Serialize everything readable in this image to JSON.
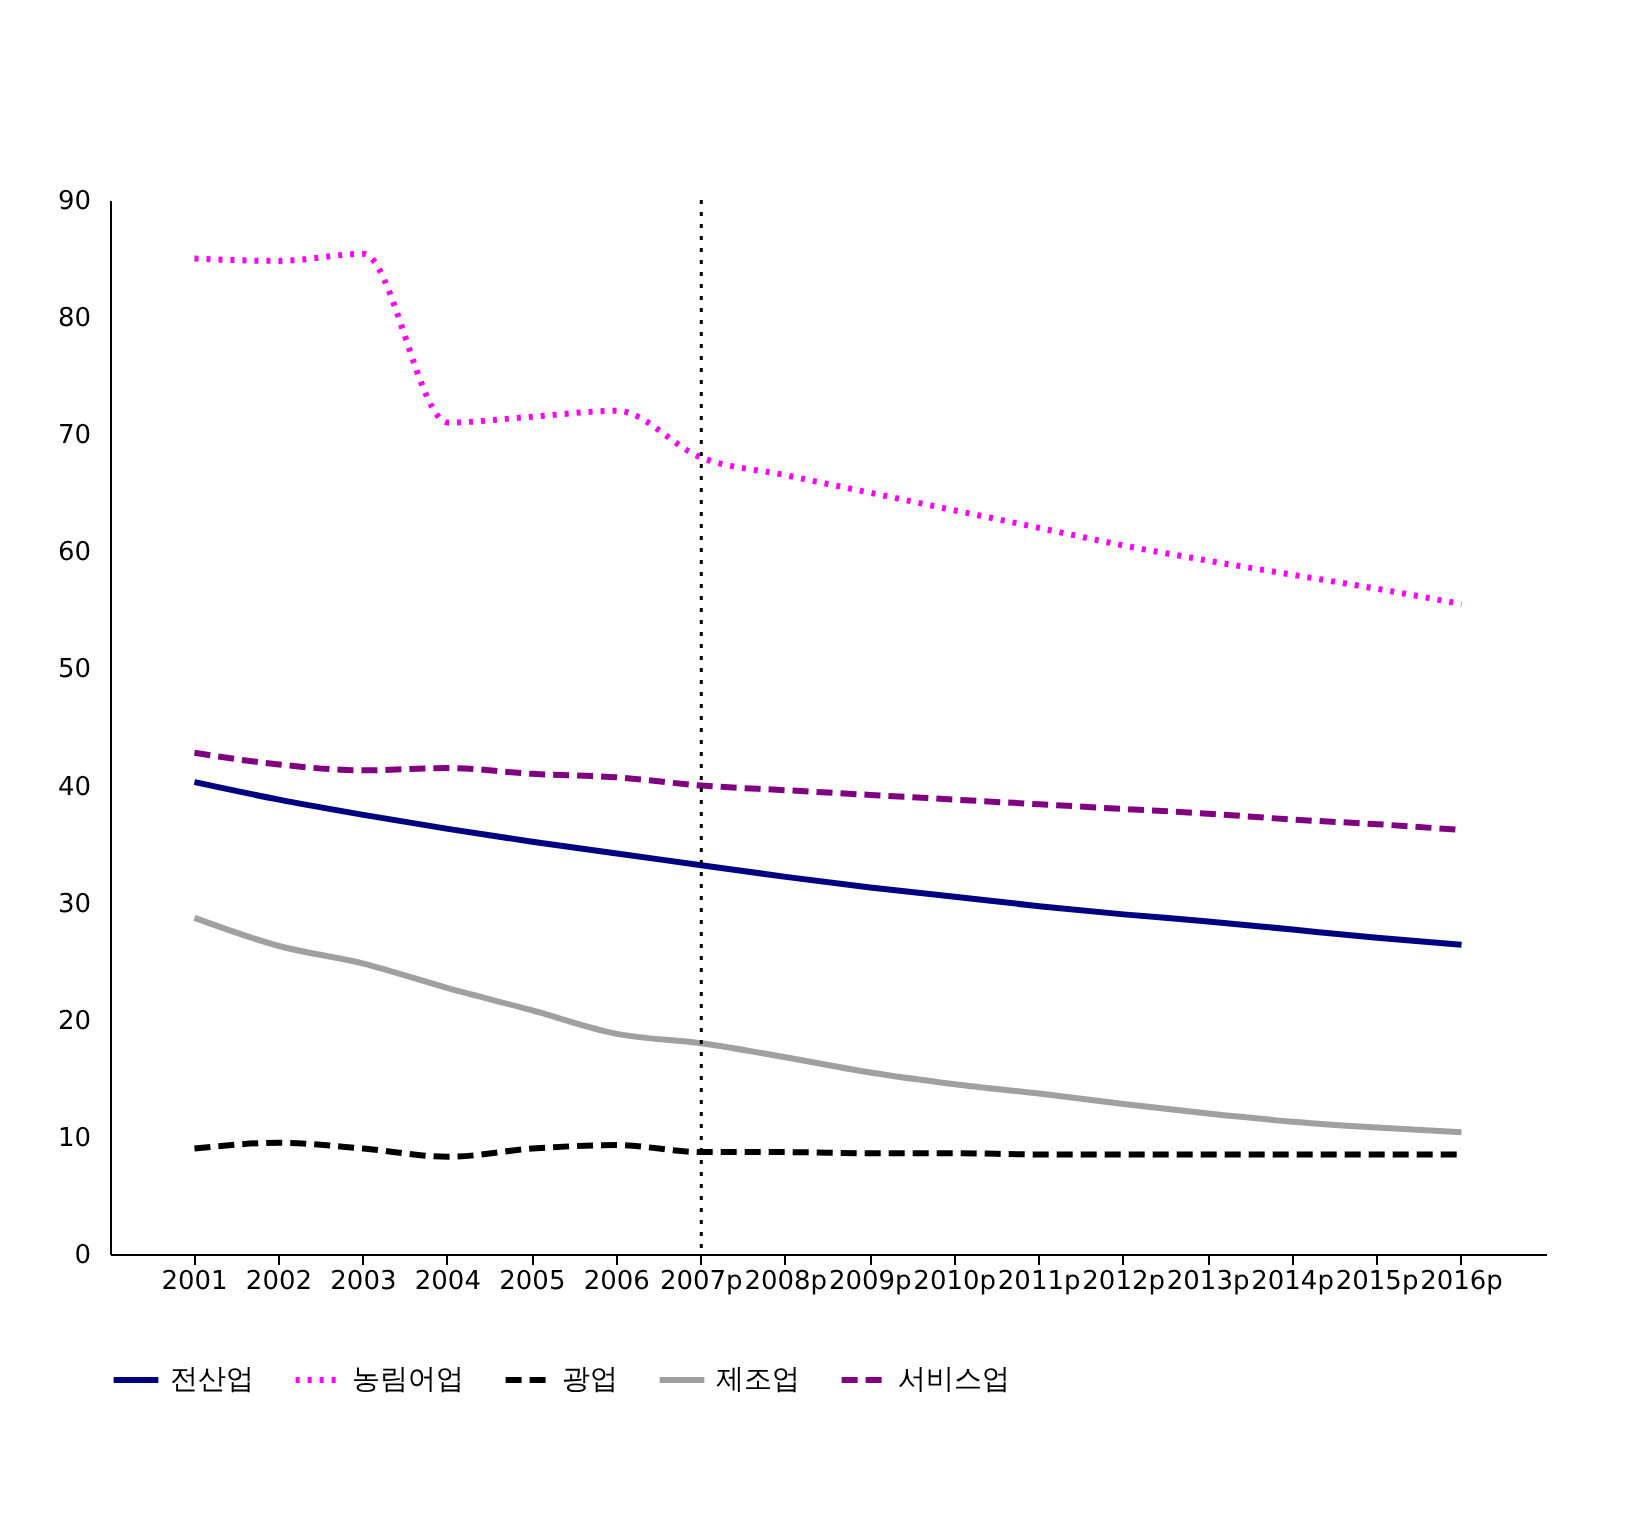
{
  "chart_data": {
    "type": "line",
    "categories": [
      "2001",
      "2002",
      "2003",
      "2004",
      "2005",
      "2006",
      "2007p",
      "2008p",
      "2009p",
      "2010p",
      "2011p",
      "2012p",
      "2013p",
      "2014p",
      "2015p",
      "2016p"
    ],
    "series": [
      {
        "name": "전산업",
        "color": "#000080",
        "line_style": "solid",
        "values": [
          40.3,
          38.8,
          37.5,
          36.3,
          35.2,
          34.2,
          33.2,
          32.2,
          31.3,
          30.5,
          29.7,
          29.0,
          28.4,
          27.7,
          27.0,
          26.4
        ]
      },
      {
        "name": "농림어업",
        "color": "#ff00ff",
        "line_style": "dotted",
        "values": [
          85.0,
          84.8,
          85.4,
          71.0,
          71.5,
          72.0,
          68.0,
          66.5,
          65.0,
          63.5,
          62.0,
          60.5,
          59.2,
          58.0,
          56.8,
          55.5
        ]
      },
      {
        "name": "광업",
        "color": "#000000",
        "line_style": "dashed",
        "values": [
          9.0,
          9.5,
          9.0,
          8.3,
          9.0,
          9.3,
          8.7,
          8.7,
          8.6,
          8.6,
          8.5,
          8.5,
          8.5,
          8.5,
          8.5,
          8.5
        ]
      },
      {
        "name": "제조업",
        "color": "#a0a0a0",
        "line_style": "solid",
        "values": [
          28.7,
          26.3,
          24.8,
          22.7,
          20.8,
          18.8,
          18.0,
          16.8,
          15.5,
          14.5,
          13.7,
          12.8,
          12.0,
          11.3,
          10.8,
          10.4
        ]
      },
      {
        "name": "서비스업",
        "color": "#800080",
        "line_style": "dashed",
        "values": [
          42.8,
          41.8,
          41.3,
          41.5,
          41.0,
          40.7,
          40.0,
          39.6,
          39.2,
          38.8,
          38.4,
          38.0,
          37.6,
          37.1,
          36.7,
          36.2
        ]
      }
    ],
    "ylim": [
      0,
      90
    ],
    "yticks": [
      0,
      10,
      20,
      30,
      40,
      50,
      60,
      70,
      80,
      90
    ],
    "grid": false,
    "legend": "bottom",
    "marker": "none",
    "ref_lines": [
      {
        "axis": "x",
        "value": "2007p",
        "color": "#000000",
        "line_style": "dotted"
      }
    ]
  }
}
